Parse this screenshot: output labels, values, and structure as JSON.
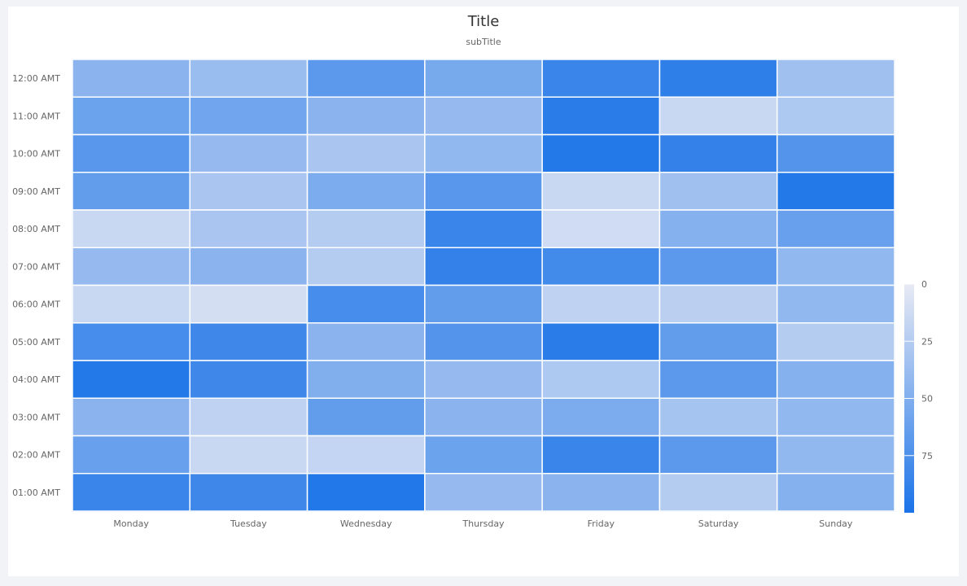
{
  "chart_data": {
    "type": "heatmap",
    "title": "Title",
    "subtitle": "subTitle",
    "x_categories": [
      "Monday",
      "Tuesday",
      "Wednesday",
      "Thursday",
      "Friday",
      "Saturday",
      "Sunday"
    ],
    "y_categories": [
      "12:00 AMT",
      "11:00 AMT",
      "10:00 AMT",
      "09:00 AMT",
      "08:00 AMT",
      "07:00 AMT",
      "06:00 AMT",
      "05:00 AMT",
      "04:00 AMT",
      "03:00 AMT",
      "02:00 AMT",
      "01:00 AMT"
    ],
    "values": [
      [
        45,
        38,
        68,
        55,
        85,
        90,
        35
      ],
      [
        60,
        58,
        45,
        40,
        92,
        15,
        28
      ],
      [
        70,
        40,
        30,
        42,
        95,
        88,
        72
      ],
      [
        65,
        30,
        52,
        70,
        15,
        35,
        95
      ],
      [
        15,
        30,
        25,
        85,
        12,
        48,
        62
      ],
      [
        40,
        45,
        25,
        88,
        80,
        68,
        42
      ],
      [
        15,
        10,
        78,
        65,
        20,
        22,
        42
      ],
      [
        78,
        82,
        45,
        72,
        92,
        65,
        25
      ],
      [
        95,
        82,
        50,
        40,
        28,
        68,
        48
      ],
      [
        45,
        20,
        65,
        45,
        52,
        32,
        42
      ],
      [
        62,
        15,
        18,
        60,
        85,
        68,
        42
      ],
      [
        85,
        82,
        96,
        40,
        45,
        25,
        48
      ]
    ],
    "color_scale": {
      "min": 0,
      "max": 100,
      "low_color": "#e8eaf4",
      "high_color": "#1a73e8",
      "ticks": [
        "0",
        "25",
        "50",
        "75"
      ]
    },
    "grid_line_color": "#ffffff",
    "legend_position": "right"
  }
}
